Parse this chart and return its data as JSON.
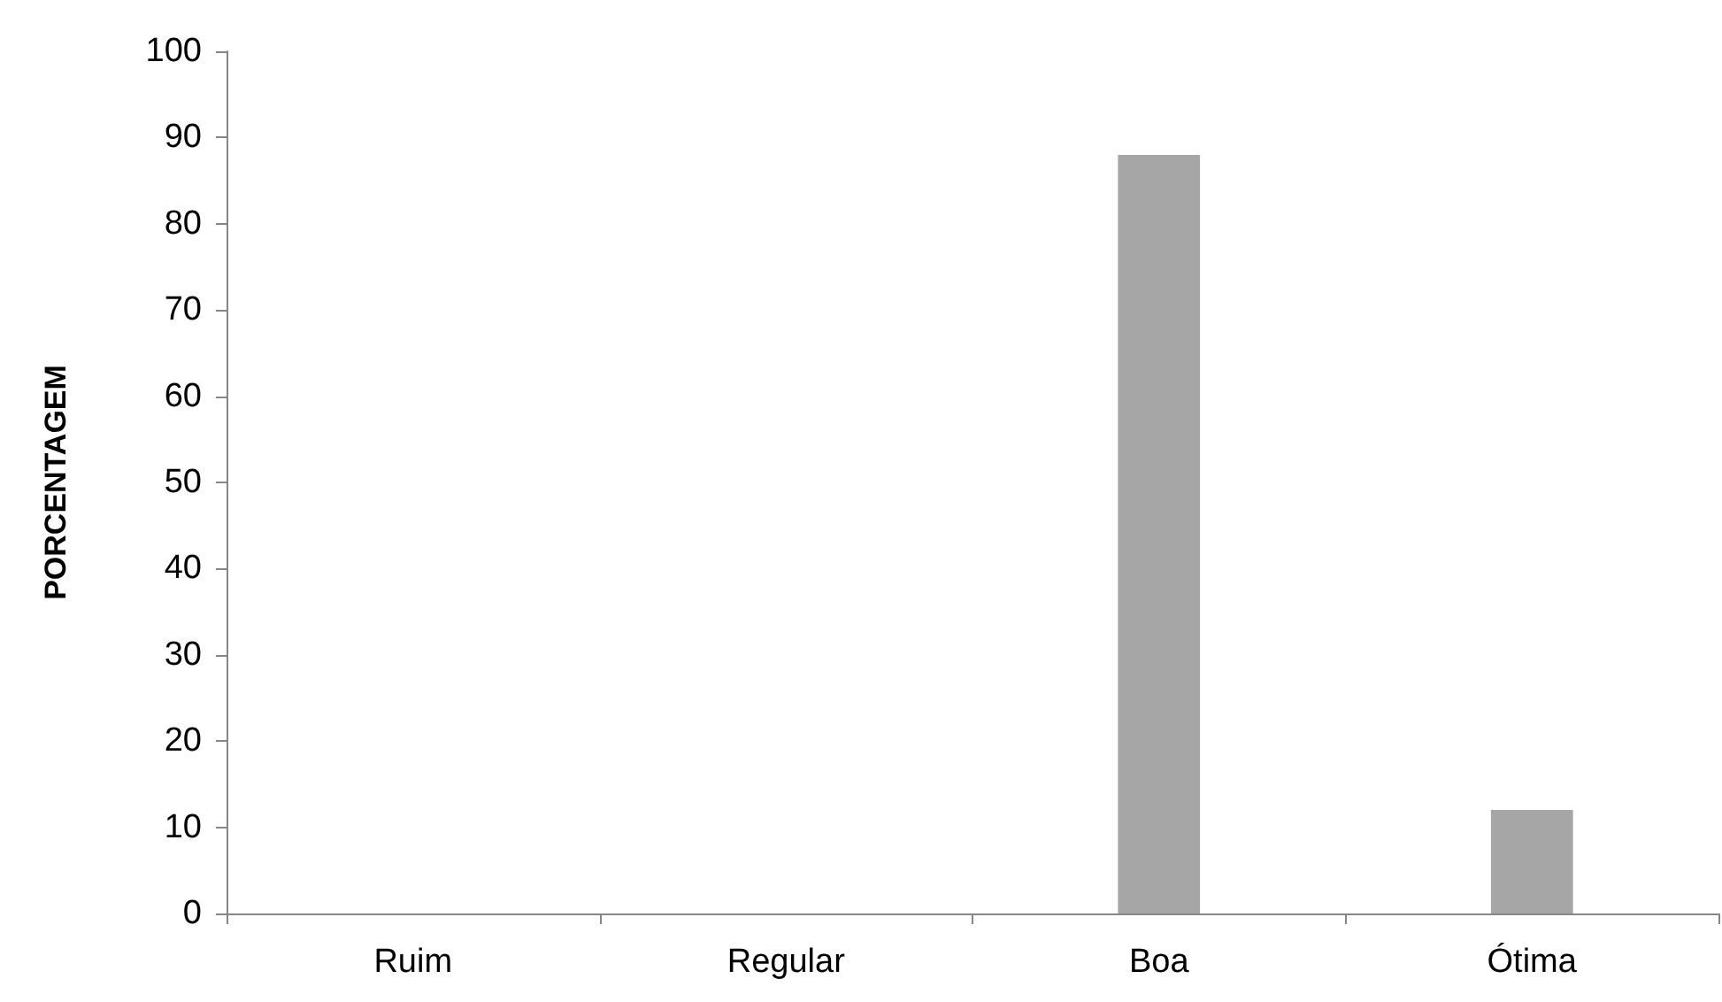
{
  "chart_data": {
    "type": "bar",
    "ylabel": "PORCENTAGEM",
    "categories": [
      "Ruim",
      "Regular",
      "Boa",
      "Ótima"
    ],
    "values": [
      0,
      0,
      88,
      12
    ],
    "color": "#a6a6a6",
    "ylim": [
      0,
      100
    ],
    "yticks": [
      0,
      10,
      20,
      30,
      40,
      50,
      60,
      70,
      80,
      90,
      100
    ],
    "grid": false
  }
}
